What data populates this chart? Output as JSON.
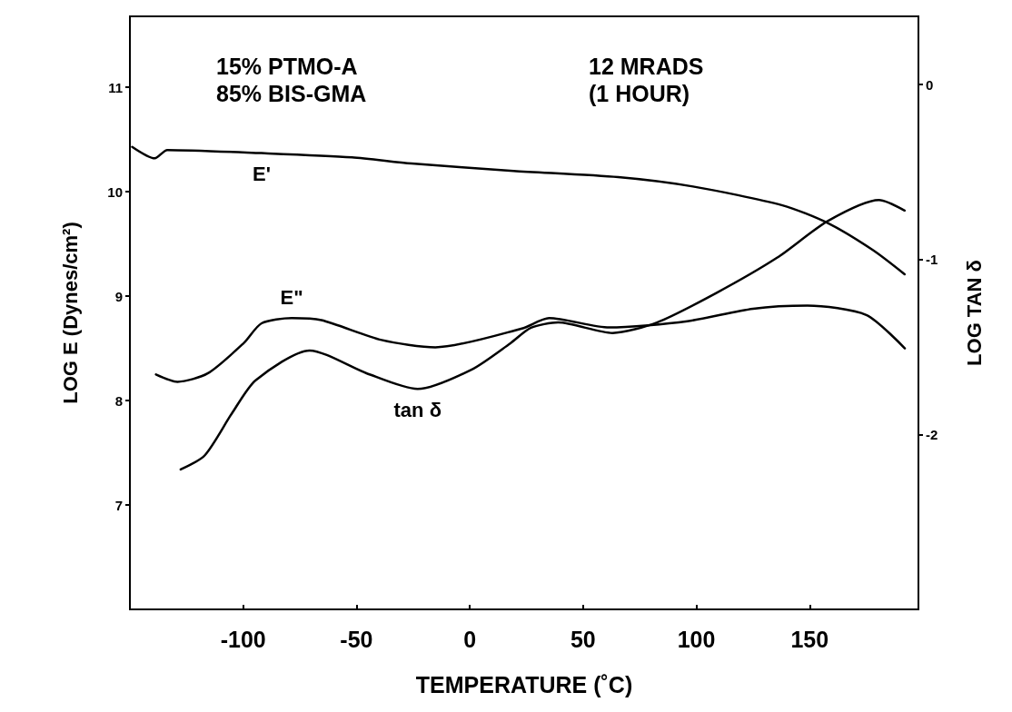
{
  "chart_data": {
    "type": "line",
    "xlabel": "TEMPERATURE (˚C)",
    "ylabel": "LOG E (Dynes/cm²)",
    "y2label": "LOG TAN δ",
    "annotations": [
      "15% PTMO-A\n85% BIS-GMA",
      "12 MRADS\n(1 HOUR)"
    ],
    "xlim": [
      -150,
      198
    ],
    "xticks": [
      -100,
      -50,
      0,
      50,
      100,
      150
    ],
    "ylim": [
      6,
      11.68
    ],
    "yticks": [
      7,
      8,
      9,
      10,
      11
    ],
    "y2lim": [
      -3.0,
      0.39
    ],
    "y2ticks": [
      0,
      -1,
      -2
    ],
    "grid": false,
    "line_style": "solid",
    "series": [
      {
        "name": "E'",
        "color": "#000000",
        "x": [
          -149,
          -139,
          -133.5,
          -91.9,
          -52,
          -25.7,
          19.3,
          65.5,
          98.5,
          138,
          158,
          178,
          191.9
        ],
        "values": [
          10.43,
          10.32,
          10.4,
          10.37,
          10.33,
          10.27,
          10.2,
          10.14,
          10.05,
          9.87,
          9.7,
          9.44,
          9.21
        ]
      },
      {
        "name": "E\"",
        "color": "#000000",
        "x": [
          -138.5,
          -129,
          -115.7,
          -99.8,
          -91.9,
          -78.6,
          -65.5,
          -38.9,
          -15.2,
          23,
          35,
          61.5,
          96,
          125,
          149,
          175,
          192
        ],
        "values": [
          8.25,
          8.18,
          8.26,
          8.55,
          8.74,
          8.79,
          8.77,
          8.58,
          8.51,
          8.69,
          8.79,
          8.7,
          8.76,
          8.88,
          8.91,
          8.82,
          8.5
        ]
      },
      {
        "name": "tan δ",
        "color": "#000000",
        "axis": "y2",
        "x": [
          -127.6,
          -117,
          -105,
          -94.5,
          -70.7,
          -45.6,
          -23,
          0.7,
          17.8,
          27,
          39,
          63,
          82.6,
          109,
          135.6,
          158,
          180.6,
          191.9
        ],
        "values": [
          -2.2,
          -2.12,
          -1.88,
          -1.69,
          -1.52,
          -1.65,
          -1.74,
          -1.63,
          -1.48,
          -1.39,
          -1.36,
          -1.42,
          -1.36,
          -1.19,
          -0.99,
          -0.78,
          -0.66,
          -0.72
        ]
      }
    ]
  }
}
